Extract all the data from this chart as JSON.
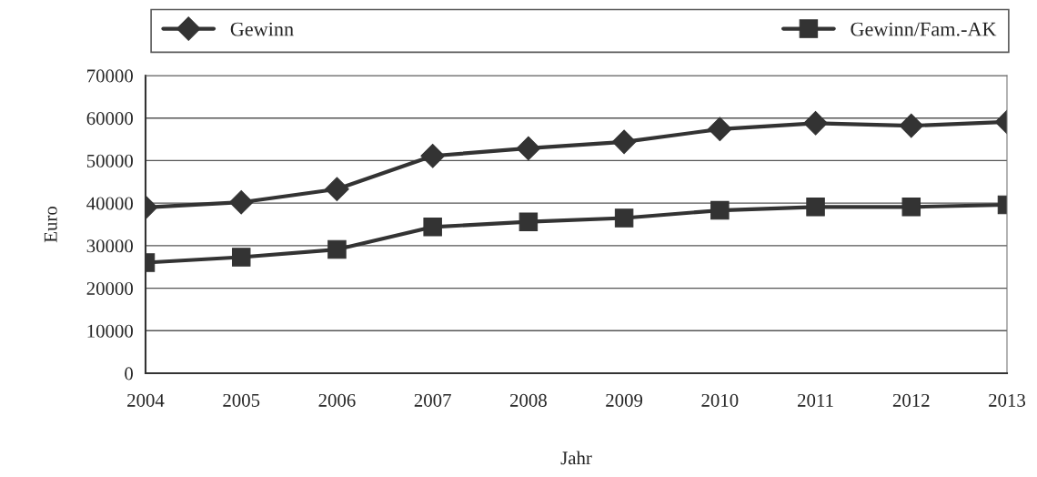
{
  "chart_data": {
    "type": "line",
    "xlabel": "Jahr",
    "ylabel": "Euro",
    "categories": [
      "2004",
      "2005",
      "2006",
      "2007",
      "2008",
      "2009",
      "2010",
      "2011",
      "2012",
      "2013"
    ],
    "series": [
      {
        "name": "Gewinn",
        "color": "#333333",
        "marker": "diamond",
        "values": [
          39000,
          40200,
          43300,
          51100,
          52900,
          54400,
          57400,
          58800,
          58200,
          59100
        ]
      },
      {
        "name": "Gewinn/Fam.-AK",
        "color": "#333333",
        "marker": "square",
        "values": [
          26000,
          27300,
          29100,
          34400,
          35600,
          36500,
          38300,
          39100,
          39100,
          39600
        ]
      }
    ],
    "ylim": [
      0,
      70000
    ],
    "yticks": [
      0,
      10000,
      20000,
      30000,
      40000,
      50000,
      60000,
      70000
    ],
    "grid": "y",
    "legend": "top",
    "line_style": "solid"
  }
}
